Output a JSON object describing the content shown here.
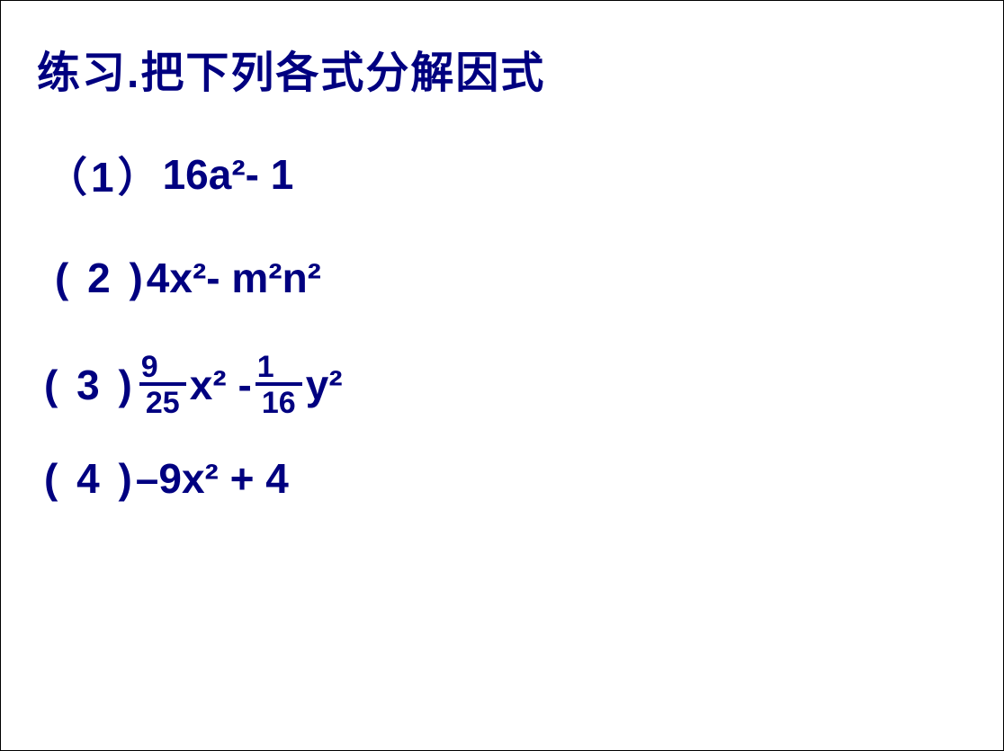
{
  "colors": {
    "text": "#000080",
    "background": "#ffffff",
    "fraction_bar": "#000080"
  },
  "typography": {
    "title_fontsize": 48,
    "problem_fontsize": 46,
    "fraction_fontsize": 34,
    "font_weight": "bold",
    "font_family": "Arial, Microsoft YaHei, sans-serif"
  },
  "title": "练习.把下列各式分解因式",
  "problems": {
    "p1": {
      "label": "（1）",
      "expr": "16a²- 1"
    },
    "p2": {
      "label": "( 2 ) ",
      "expr": "4x²- m²n²"
    },
    "p3": {
      "label": "( 3 )   ",
      "frac1_num": "9",
      "frac1_den": "25",
      "mid1": " x²  -",
      "frac2_num": "1",
      "frac2_den": "16",
      "mid2": " y²"
    },
    "p4": {
      "label": "( 4 )  ",
      "expr": "–9x² + 4"
    }
  }
}
